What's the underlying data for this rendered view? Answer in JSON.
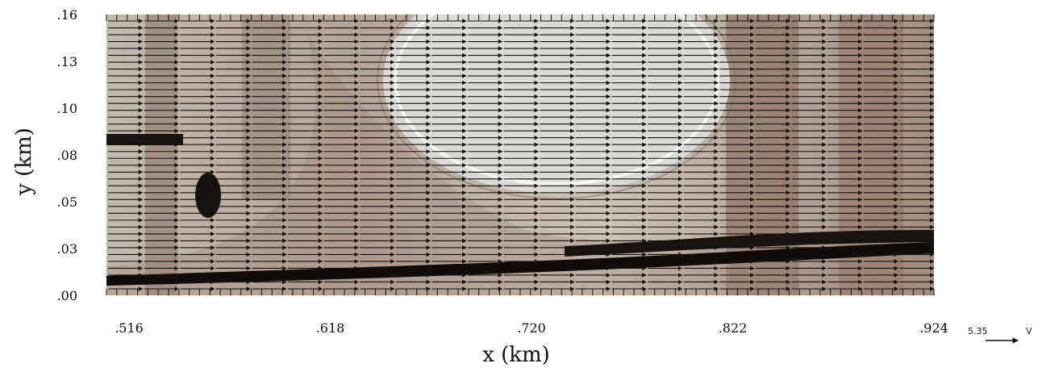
{
  "chart_data": {
    "type": "quiver",
    "title": "",
    "xlabel": "x (km)",
    "ylabel": "y (km)",
    "xlim": [
      0.516,
      0.924
    ],
    "ylim": [
      0.0,
      0.16
    ],
    "x_tick_labels": [
      ".516",
      ".618",
      ".720",
      ".822",
      ".924"
    ],
    "y_tick_labels": [
      ".00",
      ".03",
      ".05",
      ".08",
      ".10",
      ".13",
      ".16"
    ],
    "background": "aerial photograph overlay",
    "vector_direction": "+x (eastward)",
    "reference_vector": {
      "label": "5.35",
      "unit": "V"
    },
    "colors": {
      "arrow": "#111111",
      "axis": "#111111"
    }
  }
}
